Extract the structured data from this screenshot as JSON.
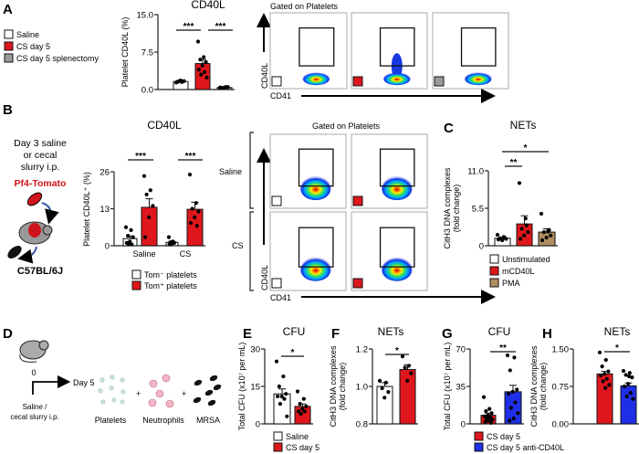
{
  "colors": {
    "saline": "#ffffff",
    "cs": "#e0161d",
    "splenectomy": "#9a9a9a",
    "pma": "#b08d5e",
    "anti_cd40l": "#1f2fe8",
    "tomato": "#d0141b"
  },
  "panel_labels": {
    "a": "A",
    "b": "B",
    "c": "C",
    "d": "D",
    "e": "E",
    "f": "F",
    "g": "G",
    "h": "H"
  },
  "legend_a": [
    "Saline",
    "CS day 5",
    "CS day 5 splenectomy"
  ],
  "legend_b": [
    "Tom⁻ platelets",
    "Tom⁺ platelets"
  ],
  "legend_c": [
    "Unstimulated",
    "mCD40L",
    "PMA"
  ],
  "legend_e": [
    "Saline",
    "CS day 5"
  ],
  "legend_g": [
    "CS day 5",
    "CS day 5 anti-CD40L"
  ],
  "flow_a": {
    "title": "Gated on Platelets",
    "ylabel": "CD40L",
    "xlabel": "CD41"
  },
  "flow_b": {
    "title": "Gated on Platelets",
    "ylabel": "CD40L",
    "xlabel": "CD41",
    "row_labels": [
      "Saline",
      "CS"
    ]
  },
  "schematic_b": {
    "line1": "Day 3 saline",
    "line2": "or cecal",
    "line3": "slurry i.p.",
    "donor": "Pf4-Tomato",
    "recipient": "C57BL/6J"
  },
  "schematic_d": {
    "day0": "0",
    "day5": "Day 5",
    "treat1": "Saline /",
    "treat2": "cecal slurry i.p.",
    "plus": "+",
    "items": [
      "Platelets",
      "Neutrophils",
      "MRSA"
    ]
  },
  "chart_data": [
    {
      "panel": "A",
      "type": "bar",
      "title": "CD40L",
      "ylabel": "Platelet CD40L (%)",
      "ylim": [
        0,
        15
      ],
      "yticks": [
        "0.0",
        "7.5",
        "15.0"
      ],
      "ytick_values": [
        0,
        7.5,
        15
      ],
      "categories": [
        "Saline",
        "CS day 5",
        "CS day 5 splenectomy"
      ],
      "values": [
        1.6,
        5.2,
        0.4
      ],
      "sem": [
        0.15,
        0.8,
        0.05
      ],
      "points": [
        [
          1.4,
          1.5,
          1.6,
          1.7,
          1.8,
          1.5,
          1.6
        ],
        [
          9.6,
          6.5,
          6.0,
          5.5,
          4.8,
          4.0,
          3.5,
          3.0,
          2.4
        ],
        [
          0.4,
          0.5,
          0.3,
          0.5,
          0.4,
          0.4
        ]
      ],
      "significance": [
        "***",
        "***"
      ]
    },
    {
      "panel": "B",
      "type": "bar",
      "title": "CD40L",
      "ylabel": "Platelet CD40L⁺ (%)",
      "ylim": [
        0,
        26
      ],
      "yticks": [
        "0",
        "13",
        "26"
      ],
      "ytick_values": [
        0,
        13,
        26
      ],
      "categories": [
        "Saline",
        "CS"
      ],
      "series": [
        {
          "name": "Tom⁻ platelets",
          "values": [
            2.5,
            1.2
          ],
          "sem": [
            0.9,
            0.3
          ]
        },
        {
          "name": "Tom⁺ platelets",
          "values": [
            13.5,
            12.8
          ],
          "sem": [
            3.0,
            2.5
          ]
        }
      ],
      "points": [
        [
          6.5,
          5.5,
          3.5,
          3.0,
          1.5,
          1.0,
          0.5,
          0.5
        ],
        [
          24.5,
          19.5,
          18,
          14,
          10,
          3
        ],
        [
          3,
          1.5,
          1.2,
          1,
          0.8,
          0.5,
          1
        ],
        [
          25,
          15,
          13,
          12,
          10,
          8,
          7
        ]
      ],
      "significance": [
        "***",
        "***"
      ]
    },
    {
      "panel": "C",
      "type": "bar",
      "title": "NETs",
      "ylabel": [
        "CitH3 DNA complexes",
        "(fold change)"
      ],
      "ylim": [
        0,
        11
      ],
      "yticks": [
        "0",
        "5.5",
        "11.0"
      ],
      "ytick_values": [
        0,
        5.5,
        11
      ],
      "categories": [
        "Unstimulated",
        "mCD40L",
        "PMA"
      ],
      "values": [
        1.1,
        3.2,
        2.0
      ],
      "sem": [
        0.1,
        1.2,
        0.5
      ],
      "points": [
        [
          1.6,
          1.3,
          1.1,
          1.0,
          0.8,
          0.9,
          1.2
        ],
        [
          9.2,
          4.0,
          2.5,
          2.0,
          1.5,
          1.0,
          3.0
        ],
        [
          4.7,
          2.1,
          2.0,
          1.5,
          1.2,
          0.8,
          2.3
        ]
      ],
      "significance": [
        "**",
        "*"
      ]
    },
    {
      "panel": "E",
      "type": "bar",
      "title": "CFU",
      "ylabel": "Total CFU (x10⁷ per mL)",
      "ylim": [
        0,
        30
      ],
      "yticks": [
        "0",
        "15",
        "30"
      ],
      "ytick_values": [
        0,
        15,
        30
      ],
      "categories": [
        "Saline",
        "CS day 5"
      ],
      "values": [
        12,
        7
      ],
      "sem": [
        2,
        1
      ],
      "points": [
        [
          25,
          19,
          15,
          12,
          11,
          11,
          10,
          8,
          3
        ],
        [
          13,
          10,
          8,
          7,
          6,
          5,
          5,
          4
        ]
      ],
      "significance": [
        "*"
      ]
    },
    {
      "panel": "F",
      "type": "bar",
      "title": "NETs",
      "ylabel": [
        "CitH3 DNA complexes",
        "(fold change)"
      ],
      "ylim": [
        0.8,
        1.2
      ],
      "yticks": [
        "0.8",
        "1.0",
        "1.2"
      ],
      "ytick_values": [
        0.8,
        1.0,
        1.2
      ],
      "categories": [
        "Saline",
        "CS day 5"
      ],
      "values": [
        1.0,
        1.09
      ],
      "sem": [
        0.02,
        0.025
      ],
      "points": [
        [
          1.03,
          1.02,
          0.99,
          0.97,
          0.94
        ],
        [
          1.16,
          1.11,
          1.1,
          1.07,
          1.03
        ]
      ],
      "significance": [
        "*"
      ]
    },
    {
      "panel": "G",
      "type": "bar",
      "title": "CFU",
      "ylabel": "Total CFU (x10⁷ per mL)",
      "ylim": [
        0,
        70
      ],
      "yticks": [
        "0",
        "35",
        "70"
      ],
      "ytick_values": [
        0,
        35,
        70
      ],
      "categories": [
        "CS day 5",
        "CS day 5 anti-CD40L"
      ],
      "values": [
        8,
        30
      ],
      "sem": [
        2,
        6
      ],
      "points": [
        [
          25,
          14,
          12,
          10,
          8,
          7,
          6,
          5,
          4,
          3,
          2,
          1
        ],
        [
          64,
          62,
          50,
          32,
          30,
          28,
          20,
          15,
          10,
          5,
          3
        ]
      ],
      "significance": [
        "**"
      ]
    },
    {
      "panel": "H",
      "type": "bar",
      "title": "NETs",
      "ylabel": [
        "CitH3 DNA complexes",
        "(fold change)"
      ],
      "ylim": [
        0,
        1.5
      ],
      "yticks": [
        "0.00",
        "0.75",
        "1.50"
      ],
      "ytick_values": [
        0,
        0.75,
        1.5
      ],
      "categories": [
        "CS day 5",
        "CS day 5 anti-CD40L"
      ],
      "values": [
        1.0,
        0.76
      ],
      "sem": [
        0.05,
        0.06
      ],
      "points": [
        [
          1.43,
          1.28,
          1.15,
          1.05,
          1.0,
          0.97,
          0.9,
          0.85,
          0.78,
          0.72
        ],
        [
          1.06,
          1.02,
          0.98,
          0.93,
          0.8,
          0.75,
          0.62,
          0.55,
          0.5,
          0.95
        ]
      ],
      "significance": [
        "*"
      ]
    }
  ]
}
